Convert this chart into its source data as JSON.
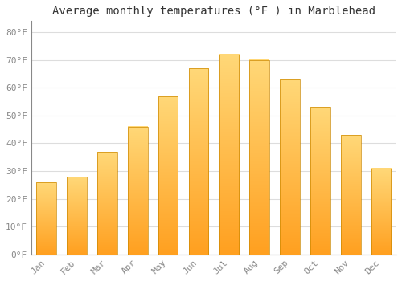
{
  "title": "Average monthly temperatures (°F ) in Marblehead",
  "months": [
    "Jan",
    "Feb",
    "Mar",
    "Apr",
    "May",
    "Jun",
    "Jul",
    "Aug",
    "Sep",
    "Oct",
    "Nov",
    "Dec"
  ],
  "values": [
    26,
    28,
    37,
    46,
    57,
    67,
    72,
    70,
    63,
    53,
    43,
    31
  ],
  "bar_color": "#FFA500",
  "bar_edge_color": "#CC8800",
  "background_color": "#FFFFFF",
  "grid_color": "#DDDDDD",
  "text_color": "#888888",
  "ylim": [
    0,
    84
  ],
  "yticks": [
    0,
    10,
    20,
    30,
    40,
    50,
    60,
    70,
    80
  ],
  "ytick_labels": [
    "0°F",
    "10°F",
    "20°F",
    "30°F",
    "40°F",
    "50°F",
    "60°F",
    "70°F",
    "80°F"
  ],
  "title_fontsize": 10,
  "tick_fontsize": 8,
  "font_family": "monospace"
}
